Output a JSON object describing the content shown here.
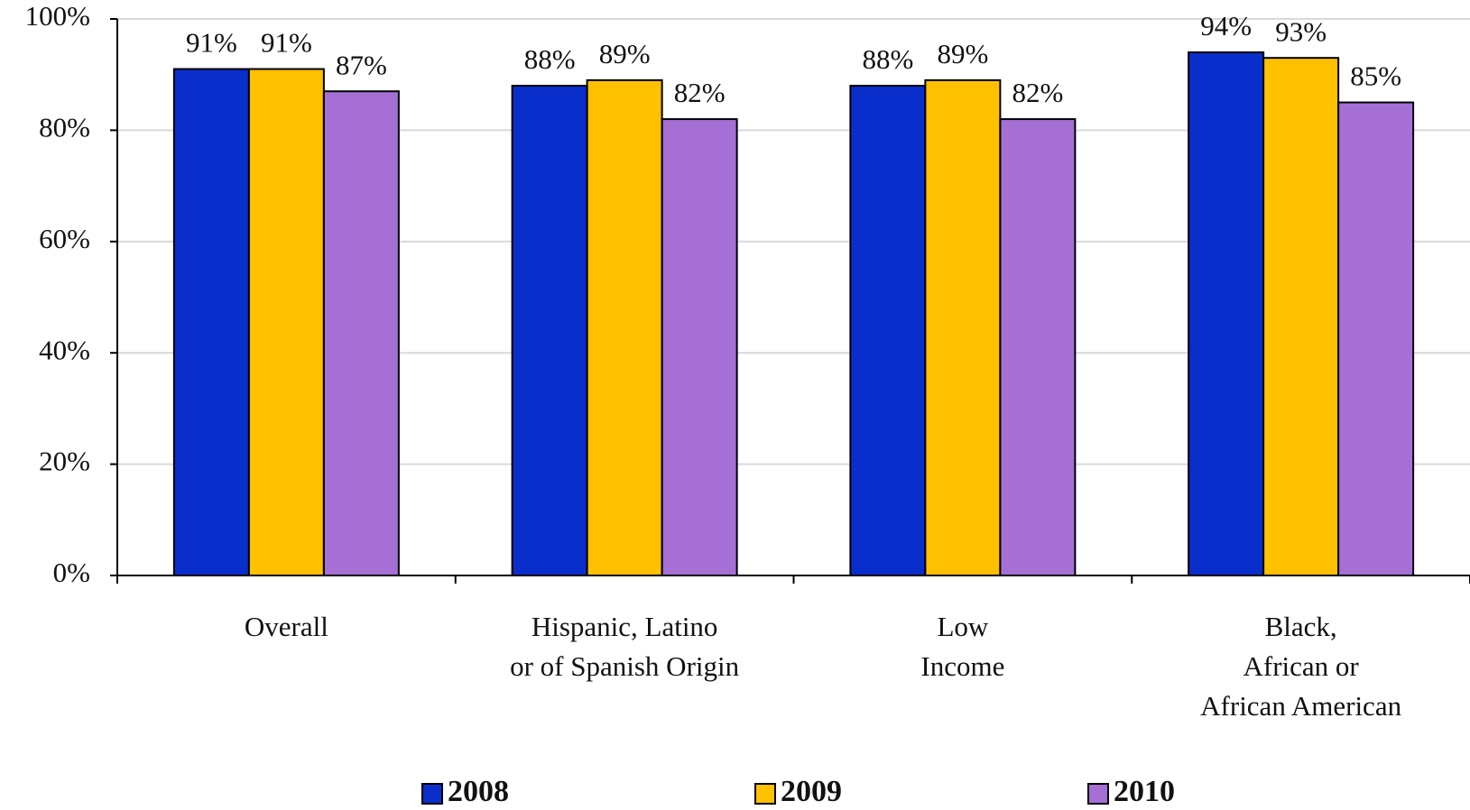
{
  "chart_data": {
    "type": "bar",
    "categories": [
      "Overall",
      "Hispanic, Latino\nor of Spanish Origin",
      "Low\nIncome",
      "Black,\nAfrican or\nAfrican American"
    ],
    "series": [
      {
        "name": "2008",
        "color": "#0a2ecb",
        "values": [
          91,
          88,
          88,
          94
        ],
        "value_labels": [
          "91%",
          "88%",
          "88%",
          "94%"
        ]
      },
      {
        "name": "2009",
        "color": "#ffc000",
        "values": [
          91,
          89,
          89,
          93
        ],
        "value_labels": [
          "91%",
          "89%",
          "89%",
          "93%"
        ]
      },
      {
        "name": "2010",
        "color": "#a56fd6",
        "values": [
          87,
          82,
          82,
          85
        ],
        "value_labels": [
          "87%",
          "82%",
          "82%",
          "85%"
        ]
      }
    ],
    "ylim": [
      0,
      100
    ],
    "yticks": [
      {
        "value": 0,
        "label": "0%"
      },
      {
        "value": 20,
        "label": "20%"
      },
      {
        "value": 40,
        "label": "40%"
      },
      {
        "value": 60,
        "label": "60%"
      },
      {
        "value": 80,
        "label": "80%"
      },
      {
        "value": 100,
        "label": "100%"
      }
    ],
    "grid": true
  }
}
